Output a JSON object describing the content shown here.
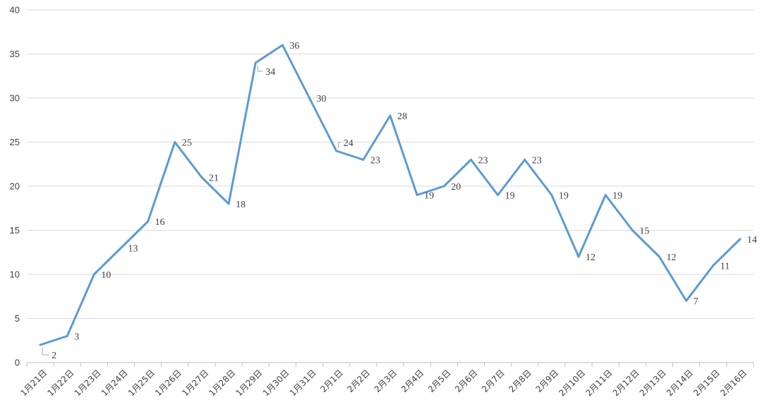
{
  "chart_data": {
    "type": "line",
    "title": "",
    "xlabel": "",
    "ylabel": "",
    "ylim": [
      0,
      40
    ],
    "yticks": [
      0,
      5,
      10,
      15,
      20,
      25,
      30,
      35,
      40
    ],
    "grid": "horizontal",
    "legend": "none",
    "line_color": "#5b9bd5",
    "categories": [
      "1月21日",
      "1月22日",
      "1月23日",
      "1月24日",
      "1月25日",
      "1月26日",
      "1月27日",
      "1月28日",
      "1月29日",
      "1月30日",
      "1月31日",
      "2月1日",
      "2月2日",
      "2月3日",
      "2月4日",
      "2月5日",
      "2月6日",
      "2月7日",
      "2月8日",
      "2月9日",
      "2月10日",
      "2月11日",
      "2月12日",
      "2月13日",
      "2月14日",
      "2月15日",
      "2月16日"
    ],
    "values": [
      2,
      3,
      10,
      13,
      16,
      25,
      21,
      18,
      34,
      36,
      30,
      24,
      23,
      28,
      19,
      20,
      23,
      19,
      23,
      19,
      12,
      19,
      15,
      12,
      7,
      11,
      14
    ],
    "data_labels": [
      "2",
      "3",
      "10",
      "13",
      "16",
      "25",
      "21",
      "18",
      "34",
      "36",
      "30",
      "24",
      "23",
      "28",
      "19",
      "20",
      "23",
      "19",
      "23",
      "19",
      "12",
      "19",
      "15",
      "12",
      "7",
      "11",
      "14"
    ]
  }
}
